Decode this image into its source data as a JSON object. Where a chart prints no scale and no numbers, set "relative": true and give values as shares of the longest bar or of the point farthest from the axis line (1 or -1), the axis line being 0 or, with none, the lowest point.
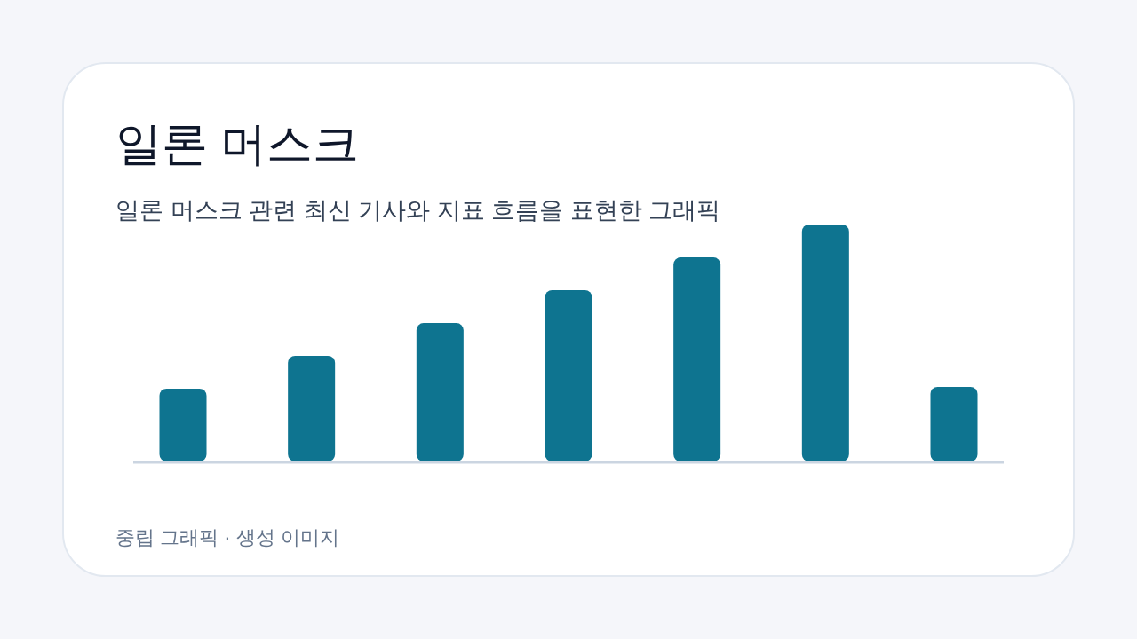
{
  "chart_data": {
    "type": "bar",
    "title": "일론 머스크",
    "subtitle": "일론 머스크 관련 최신 기사와 지표 흐름을 표현한 그래픽",
    "annotations": [
      "중립 그래픽 · 생성 이미지"
    ],
    "categories": [
      null,
      null,
      null,
      null,
      null,
      null,
      null
    ],
    "values": [
      0.307,
      0.446,
      0.584,
      0.723,
      0.861,
      1,
      0.315
    ],
    "color": "#0e7490",
    "relative": true
  }
}
